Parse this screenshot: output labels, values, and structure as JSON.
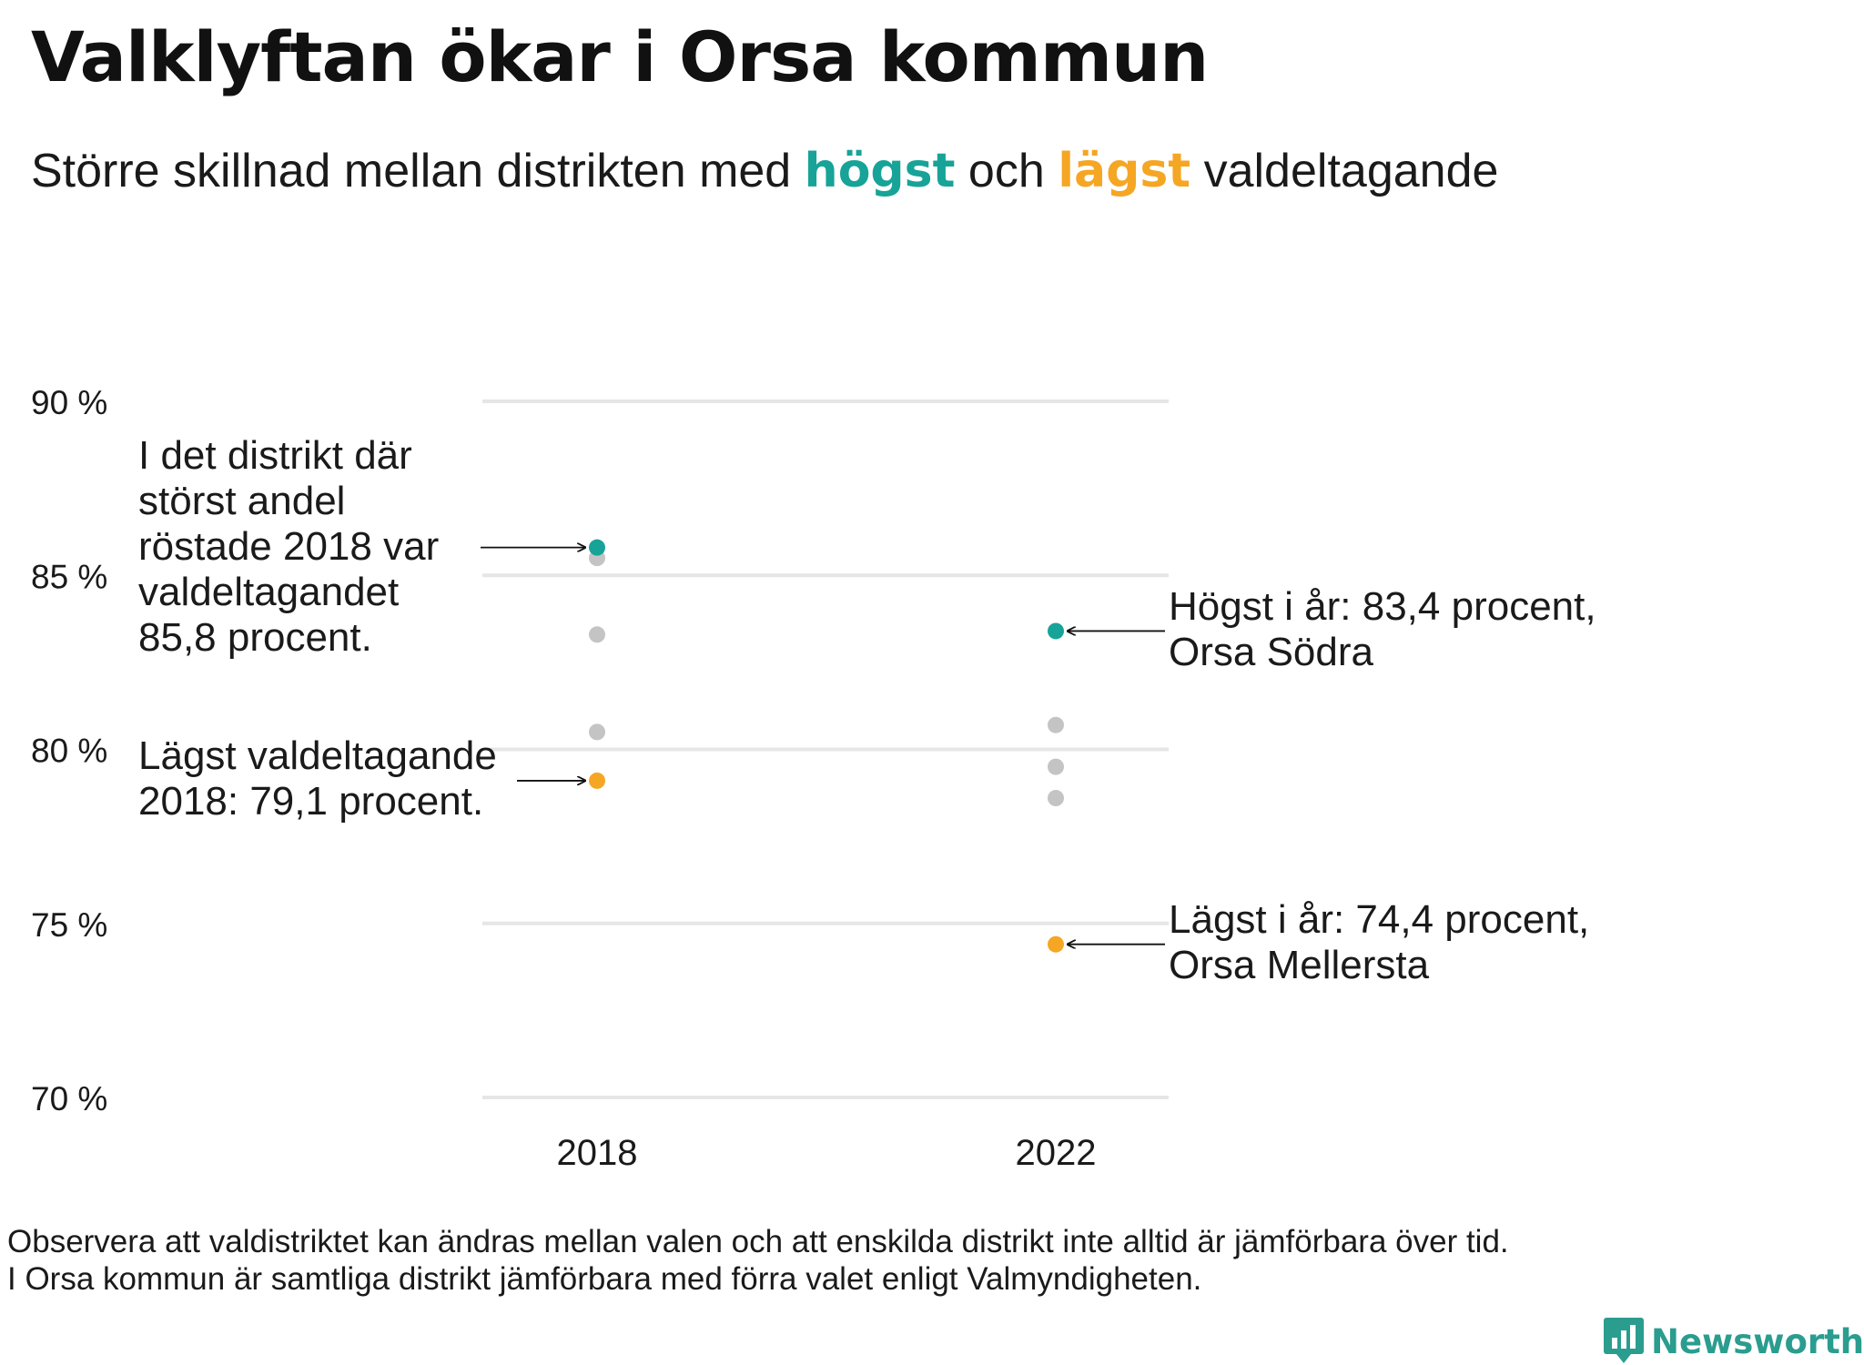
{
  "title": "Valklyftan ökar i Orsa kommun",
  "subtitle": {
    "part1": "Större skillnad mellan distrikten med ",
    "high_word": "högst",
    "mid": " och ",
    "low_word": "lägst",
    "part2": " valdeltagande"
  },
  "colors": {
    "high": "#17a398",
    "low": "#f5a623",
    "other": "#c4c4c4",
    "gridline": "#e6e6e6"
  },
  "chart_data": {
    "type": "scatter",
    "categories": [
      "2018",
      "2022"
    ],
    "y_ticks": [
      {
        "value": 90,
        "label": "90 %"
      },
      {
        "value": 85,
        "label": "85 %"
      },
      {
        "value": 80,
        "label": "80 %"
      },
      {
        "value": 75,
        "label": "75 %"
      },
      {
        "value": 70,
        "label": "70 %"
      }
    ],
    "ylim": [
      70,
      90
    ],
    "grid": true,
    "points": [
      {
        "x": "2018",
        "y": 85.5,
        "group": "other"
      },
      {
        "x": "2018",
        "y": 83.3,
        "group": "other"
      },
      {
        "x": "2018",
        "y": 80.5,
        "group": "other"
      },
      {
        "x": "2018",
        "y": 85.8,
        "group": "high"
      },
      {
        "x": "2018",
        "y": 79.1,
        "group": "low"
      },
      {
        "x": "2022",
        "y": 80.7,
        "group": "other"
      },
      {
        "x": "2022",
        "y": 79.5,
        "group": "other"
      },
      {
        "x": "2022",
        "y": 78.6,
        "group": "other"
      },
      {
        "x": "2022",
        "y": 83.4,
        "group": "high"
      },
      {
        "x": "2022",
        "y": 74.4,
        "group": "low"
      }
    ],
    "annotations": [
      {
        "id": "ann-2018-high",
        "text": "I det distrikt där\nstörst andel\nröstade 2018 var\nvaldeltagandet\n85,8 procent.",
        "x": "2018",
        "y": 85.8,
        "side": "left"
      },
      {
        "id": "ann-2018-low",
        "text": "Lägst valdeltagande\n2018: 79,1 procent.",
        "x": "2018",
        "y": 79.1,
        "side": "left"
      },
      {
        "id": "ann-2022-high",
        "text": "Högst i år: 83,4 procent,\nOrsa Södra",
        "x": "2022",
        "y": 83.4,
        "side": "right"
      },
      {
        "id": "ann-2022-low",
        "text": "Lägst i år: 74,4 procent,\nOrsa Mellersta",
        "x": "2022",
        "y": 74.4,
        "side": "right"
      }
    ]
  },
  "footnote": {
    "line1": "Observera att valdistriktet kan ändras mellan valen och att enskilda distrikt inte alltid är jämförbara över tid.",
    "line2": "I Orsa kommun är samtliga distrikt jämförbara med förra valet enligt Valmyndigheten."
  },
  "brand": {
    "name": "Newsworthy",
    "icon": "bar-chart-speech-bubble-icon"
  }
}
